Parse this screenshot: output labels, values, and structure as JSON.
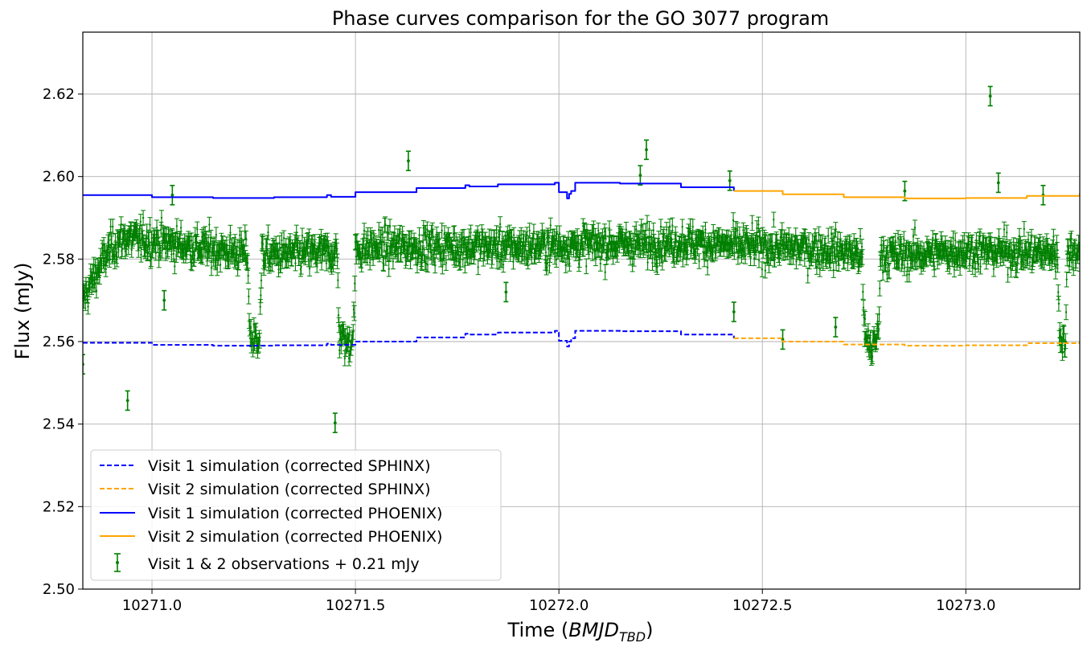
{
  "chart_data": {
    "type": "line",
    "title": "Phase curves comparison for the GO 3077 program",
    "xlabel_prefix": "Time (",
    "xlabel_italic": "BMJD",
    "xlabel_sub": "TBD",
    "xlabel_suffix": ")",
    "ylabel": "Flux (mJy)",
    "xlim": [
      10270.83,
      10273.28
    ],
    "ylim": [
      2.5,
      2.635
    ],
    "grid": true,
    "legend_position": "lower-left",
    "x_ticks": [
      10271.0,
      10271.5,
      10272.0,
      10272.5,
      10273.0
    ],
    "x_tick_labels": [
      "10271.0",
      "10271.5",
      "10272.0",
      "10272.5",
      "10273.0"
    ],
    "y_ticks": [
      2.5,
      2.52,
      2.54,
      2.56,
      2.58,
      2.6,
      2.62
    ],
    "y_tick_labels": [
      "2.50",
      "2.52",
      "2.54",
      "2.56",
      "2.58",
      "2.60",
      "2.62"
    ],
    "series": [
      {
        "name": "Visit 1 simulation (corrected SPHINX)",
        "color": "#0000ff",
        "style": "dashed",
        "x": [
          10270.83,
          10271.0,
          10271.15,
          10271.3,
          10271.43,
          10271.44,
          10271.5,
          10271.65,
          10271.77,
          10271.78,
          10271.85,
          10271.99,
          10272.0,
          10272.02,
          10272.025,
          10272.03,
          10272.04,
          10272.15,
          10272.3,
          10272.43
        ],
        "y": [
          2.5597,
          2.5592,
          2.559,
          2.5591,
          2.5595,
          2.5592,
          2.56,
          2.561,
          2.5619,
          2.5617,
          2.5622,
          2.5626,
          2.5602,
          2.5588,
          2.56,
          2.5608,
          2.5626,
          2.5625,
          2.5617,
          2.5608
        ]
      },
      {
        "name": "Visit 2 simulation (corrected SPHINX)",
        "color": "#ffa500",
        "style": "dashed",
        "x": [
          10272.43,
          10272.55,
          10272.7,
          10272.85,
          10273.0,
          10273.15,
          10273.28
        ],
        "y": [
          2.5608,
          2.56,
          2.5593,
          2.559,
          2.5591,
          2.5596,
          2.5601
        ]
      },
      {
        "name": "Visit 1 simulation (corrected PHOENIX)",
        "color": "#0000ff",
        "style": "solid",
        "x": [
          10270.83,
          10271.0,
          10271.15,
          10271.3,
          10271.43,
          10271.44,
          10271.5,
          10271.65,
          10271.77,
          10271.78,
          10271.85,
          10271.99,
          10272.0,
          10272.02,
          10272.025,
          10272.03,
          10272.04,
          10272.15,
          10272.3,
          10272.43
        ],
        "y": [
          2.5955,
          2.595,
          2.5948,
          2.595,
          2.5955,
          2.5951,
          2.5962,
          2.5972,
          2.5979,
          2.5976,
          2.5981,
          2.5985,
          2.5962,
          2.5947,
          2.5958,
          2.5965,
          2.5985,
          2.5983,
          2.5974,
          2.5965
        ]
      },
      {
        "name": "Visit 2 simulation (corrected PHOENIX)",
        "color": "#ffa500",
        "style": "solid",
        "x": [
          10272.43,
          10272.55,
          10272.7,
          10272.85,
          10273.0,
          10273.15,
          10273.28
        ],
        "y": [
          2.5965,
          2.5957,
          2.595,
          2.5947,
          2.5948,
          2.5953,
          2.596
        ]
      },
      {
        "name": "Visit 1 & 2 observations + 0.21 mJy",
        "color": "#008000",
        "style": "errorbar",
        "baseline_x": [
          10270.83,
          10270.86,
          10270.9,
          10270.93,
          10271.0,
          10271.1,
          10271.18,
          10271.235,
          10271.24,
          10271.25,
          10271.265,
          10271.27,
          10271.3,
          10271.4,
          10271.455,
          10271.46,
          10271.48,
          10271.495,
          10271.5,
          10271.55,
          10271.7,
          10271.9,
          10272.1,
          10272.3,
          10272.5,
          10272.7,
          10272.745,
          10272.75,
          10272.77,
          10272.785,
          10272.79,
          10272.85,
          10273.0,
          10273.2,
          10273.225,
          10273.23,
          10273.245,
          10273.25,
          10273.28
        ],
        "baseline_y": [
          2.57,
          2.576,
          2.583,
          2.585,
          2.5845,
          2.583,
          2.582,
          2.5815,
          2.562,
          2.56,
          2.562,
          2.581,
          2.581,
          2.5815,
          2.5815,
          2.562,
          2.559,
          2.562,
          2.582,
          2.583,
          2.583,
          2.583,
          2.5835,
          2.584,
          2.583,
          2.582,
          2.581,
          2.562,
          2.558,
          2.562,
          2.581,
          2.581,
          2.582,
          2.5815,
          2.5815,
          2.562,
          2.56,
          2.582,
          2.582
        ],
        "noise_sigma": 0.003,
        "error": 0.0018,
        "outliers": [
          {
            "x": 10270.83,
            "y": 2.5545
          },
          {
            "x": 10270.94,
            "y": 2.5457
          },
          {
            "x": 10271.03,
            "y": 2.57
          },
          {
            "x": 10271.05,
            "y": 2.5955
          },
          {
            "x": 10271.45,
            "y": 2.5403
          },
          {
            "x": 10271.63,
            "y": 2.6038
          },
          {
            "x": 10271.87,
            "y": 2.572
          },
          {
            "x": 10272.2,
            "y": 2.6003
          },
          {
            "x": 10272.215,
            "y": 2.6065
          },
          {
            "x": 10272.42,
            "y": 2.599
          },
          {
            "x": 10272.43,
            "y": 2.5672
          },
          {
            "x": 10272.55,
            "y": 2.5605
          },
          {
            "x": 10272.68,
            "y": 2.5635
          },
          {
            "x": 10272.85,
            "y": 2.5965
          },
          {
            "x": 10273.06,
            "y": 2.6195
          },
          {
            "x": 10273.08,
            "y": 2.5985
          },
          {
            "x": 10273.19,
            "y": 2.5955
          }
        ]
      }
    ]
  }
}
